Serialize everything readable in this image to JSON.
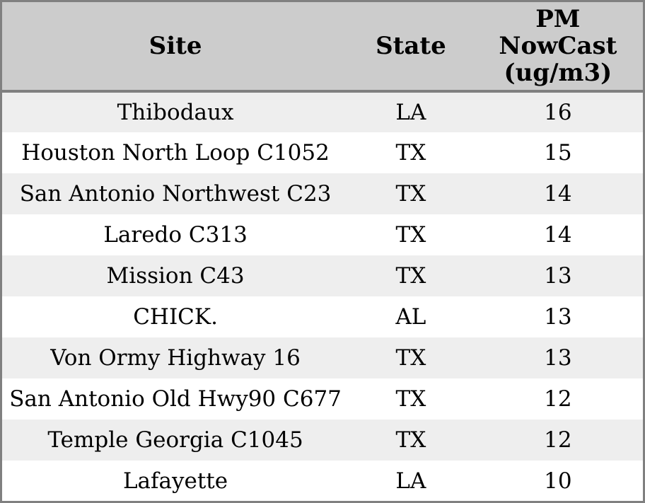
{
  "chart_data": {
    "type": "table",
    "columns": [
      "Site",
      "State",
      "PM NowCast (ug/m3)"
    ],
    "rows": [
      [
        "Thibodaux",
        "LA",
        16
      ],
      [
        "Houston North Loop C1052",
        "TX",
        15
      ],
      [
        "San Antonio Northwest C23",
        "TX",
        14
      ],
      [
        "Laredo C313",
        "TX",
        14
      ],
      [
        "Mission C43",
        "TX",
        13
      ],
      [
        "CHICK.",
        "AL",
        13
      ],
      [
        "Von Ormy Highway 16",
        "TX",
        13
      ],
      [
        "San Antonio Old Hwy90 C677",
        "TX",
        12
      ],
      [
        "Temple Georgia C1045",
        "TX",
        12
      ],
      [
        "Lafayette",
        "LA",
        10
      ]
    ],
    "title": "",
    "legend": "none",
    "grid": "row-striping"
  },
  "colors": {
    "header_bg": "#cccccc",
    "row_alt_bg": "#eeeeee",
    "row_bg": "#ffffff",
    "border": "#808080",
    "text": "#000000"
  }
}
